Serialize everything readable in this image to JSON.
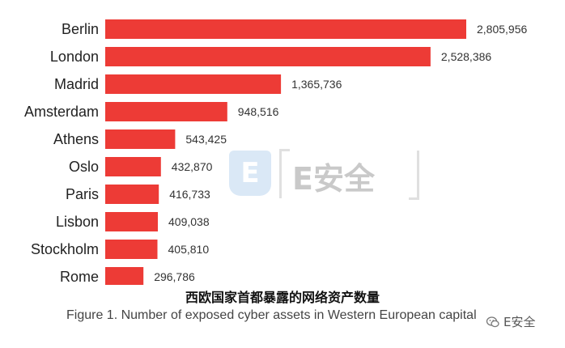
{
  "chart_data": {
    "type": "bar",
    "orientation": "horizontal",
    "categories": [
      "Berlin",
      "London",
      "Madrid",
      "Amsterdam",
      "Athens",
      "Oslo",
      "Paris",
      "Lisbon",
      "Stockholm",
      "Rome"
    ],
    "values": [
      2805956,
      2528386,
      1365736,
      948516,
      543425,
      432870,
      416733,
      409038,
      405810,
      296786
    ],
    "value_labels": [
      "2,805,956",
      "2,528,386",
      "1,365,736",
      "948,516",
      "543,425",
      "432,870",
      "416,733",
      "409,038",
      "405,810",
      "296,786"
    ],
    "bar_color": "#ed3b36",
    "grid": false,
    "xlim": [
      0,
      2805956
    ]
  },
  "caption": {
    "chinese": "西欧国家首都暴露的网络资产数量",
    "english": "Figure 1. Number of exposed cyber assets in Western European capital"
  },
  "watermark": {
    "logo_letter": "E",
    "text": "E安全"
  },
  "credit": {
    "text": "E安全",
    "icon": "wechat-icon"
  }
}
